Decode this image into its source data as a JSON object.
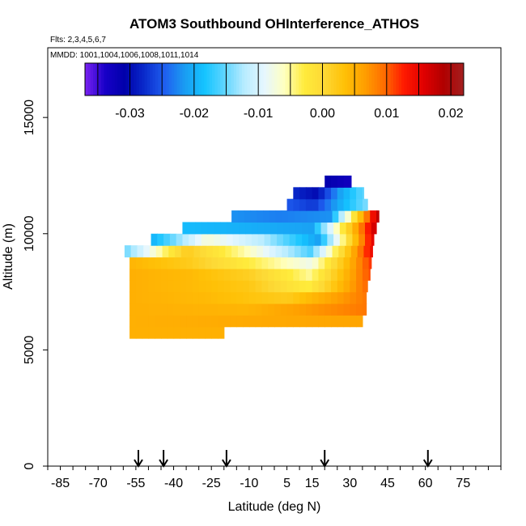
{
  "chart_data": {
    "type": "heatmap",
    "title": "ATOM3 Southbound OHInterference_ATHOS",
    "flights_label": "Flts: 2,3,4,5,6,7",
    "mmdd_label": "MMDD: 1001,1004,1006,1008,1011,1014",
    "xlabel": "Latitude (deg N)",
    "ylabel": "Altitude (m)",
    "xlim": [
      -90,
      90
    ],
    "ylim": [
      0,
      18000
    ],
    "x_ticks_major": [
      -85,
      -70,
      -55,
      -40,
      -25,
      -10,
      5,
      15,
      30,
      45,
      60,
      75
    ],
    "x_tick_labels": [
      "-85",
      "-70",
      "-55",
      "-40",
      "-25",
      "-10",
      "5",
      "15",
      "30",
      "45",
      "60",
      "75"
    ],
    "y_ticks": [
      0,
      5000,
      10000,
      15000
    ],
    "y_tick_labels": [
      "0",
      "5000",
      "10000",
      "15000"
    ],
    "colorbar": {
      "range": [
        -0.037,
        0.022
      ],
      "ticks": [
        -0.03,
        -0.02,
        -0.01,
        0.0,
        0.01,
        0.02
      ],
      "tick_labels": [
        "-0.03",
        "-0.02",
        "-0.01",
        "0.00",
        "0.01",
        "0.02"
      ],
      "colors": [
        "#7b22f2",
        "#1800c8",
        "#0000aa",
        "#0a2ccc",
        "#1f5ff0",
        "#1a9cf2",
        "#14c4ff",
        "#5fd5ff",
        "#b8ecff",
        "#e6f7ff",
        "#ffffc0",
        "#ffeb3b",
        "#fdd835",
        "#ffc107",
        "#ffa000",
        "#ff6d00",
        "#ff1a00",
        "#e00000",
        "#b00000",
        "#a32020"
      ]
    },
    "flight_markers_lat": [
      -54,
      -44,
      -19,
      20,
      61
    ],
    "bands": [
      {
        "alt": [
          5500,
          6000
        ],
        "lat": [
          -57.5,
          -20.0
        ],
        "values": [
          0.005,
          0.005
        ]
      },
      {
        "alt": [
          6000,
          6500
        ],
        "lat": [
          -57.5,
          35.0
        ],
        "values": [
          0.005,
          0.006
        ]
      },
      {
        "alt": [
          6500,
          7000
        ],
        "lat": [
          -57.5,
          36.5
        ],
        "values": [
          0.005,
          0.0045,
          0.009
        ]
      },
      {
        "alt": [
          7000,
          7500
        ],
        "lat": [
          -57.5,
          36.5
        ],
        "values": [
          0.005,
          0.004,
          0.002,
          0.009
        ]
      },
      {
        "alt": [
          7500,
          8000
        ],
        "lat": [
          -57.5,
          37.0
        ],
        "values": [
          0.005,
          0.004,
          0.0025,
          -0.003,
          0.01
        ]
      },
      {
        "alt": [
          8000,
          8500
        ],
        "lat": [
          -57.5,
          38.0
        ],
        "values": [
          0.005,
          0.004,
          0.0015,
          -0.005,
          0.011
        ]
      },
      {
        "alt": [
          8500,
          9000
        ],
        "lat": [
          -57.5,
          38.5
        ],
        "values": [
          0.0045,
          0.002,
          -0.003,
          -0.008,
          0.012
        ]
      },
      {
        "alt": [
          9000,
          9500
        ],
        "lat": [
          -59.5,
          39.0
        ],
        "values": [
          -0.015,
          0.002,
          -0.006,
          -0.016,
          0.015
        ]
      },
      {
        "alt": [
          9500,
          10000
        ],
        "lat": [
          -49.0,
          39.5
        ],
        "values": [
          -0.02,
          -0.007,
          -0.012,
          -0.021,
          0.016
        ]
      },
      {
        "alt": [
          10000,
          10500
        ],
        "lat": [
          -36.5,
          40.5
        ],
        "values": [
          -0.019,
          -0.02,
          -0.021,
          0.018
        ]
      },
      {
        "alt": [
          10500,
          11000
        ],
        "lat": [
          -17.0,
          41.5
        ],
        "values": [
          -0.022,
          -0.023,
          -0.022,
          0.019
        ]
      },
      {
        "alt": [
          11000,
          11500
        ],
        "lat": [
          5.0,
          37.0
        ],
        "values": [
          -0.025,
          -0.027,
          -0.02,
          -0.014
        ]
      },
      {
        "alt": [
          11500,
          12000
        ],
        "lat": [
          7.5,
          35.5
        ],
        "values": [
          -0.028,
          -0.03,
          -0.021,
          -0.015
        ]
      },
      {
        "alt": [
          12000,
          12500
        ],
        "lat": [
          20.0,
          30.5
        ],
        "values": [
          -0.031,
          -0.033
        ]
      }
    ]
  }
}
